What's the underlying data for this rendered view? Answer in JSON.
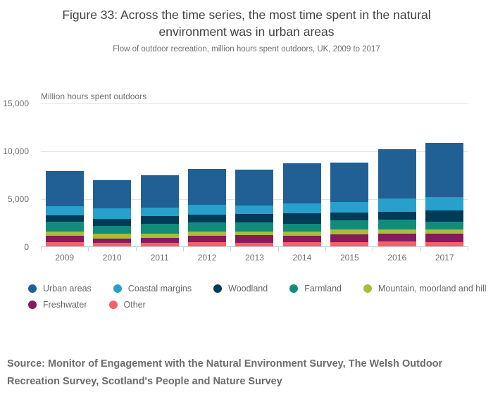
{
  "figure": {
    "title": "Figure 33: Across the time series, the most time spent in the natural environment was in urban areas",
    "subtitle": "Flow of outdoor recreation, million hours spent outdoors, UK, 2009 to 2017",
    "source": "Source: Monitor of Engagement with the Natural Environment Survey, The Welsh Outdoor Recreation Survey, Scotland's People and Nature Survey"
  },
  "chart_data": {
    "type": "bar",
    "stacked": true,
    "title": "Figure 33: Across the time series, the most time spent in the natural environment was in urban areas",
    "subtitle": "Flow of outdoor recreation, million hours spent outdoors, UK, 2009 to 2017",
    "unit_label": "Million hours spent outdoors",
    "xlabel": "",
    "ylabel": "Million hours spent outdoors",
    "ylim": [
      0,
      15000
    ],
    "grid": "horizontal",
    "legend_position": "bottom",
    "legend_row_split": 5,
    "axis_color": "#c9cfe0",
    "gridline_color": "#e2e2e2",
    "categories": [
      "2009",
      "2010",
      "2011",
      "2012",
      "2013",
      "2014",
      "2015",
      "2016",
      "2017"
    ],
    "y_ticks": [
      {
        "value": 15000,
        "label": "15,000"
      },
      {
        "value": 10000,
        "label": "10,000"
      },
      {
        "value": 5000,
        "label": "5,000"
      },
      {
        "value": 0,
        "label": "0"
      }
    ],
    "stack_order_bottom_to_top": [
      "Other",
      "Freshwater",
      "Mountain, moorland and hill",
      "Farmland",
      "Woodland",
      "Coastal margins",
      "Urban areas"
    ],
    "series": [
      {
        "name": "Urban areas",
        "color": "#206095",
        "values": [
          3650,
          2950,
          3350,
          3750,
          3750,
          4250,
          4150,
          5200,
          5650
        ]
      },
      {
        "name": "Coastal margins",
        "color": "#27a0cc",
        "values": [
          1000,
          1150,
          950,
          1050,
          900,
          1050,
          1100,
          1350,
          1450
        ]
      },
      {
        "name": "Woodland",
        "color": "#003c57",
        "values": [
          650,
          700,
          750,
          800,
          900,
          1050,
          800,
          850,
          1150
        ]
      },
      {
        "name": "Farmland",
        "color": "#118c7b",
        "values": [
          1050,
          800,
          1050,
          950,
          950,
          850,
          1000,
          1000,
          850
        ]
      },
      {
        "name": "Mountain, moorland and hill",
        "color": "#a8bd3a",
        "values": [
          450,
          500,
          450,
          450,
          400,
          450,
          500,
          450,
          450
        ]
      },
      {
        "name": "Freshwater",
        "color": "#871a5b",
        "values": [
          650,
          500,
          550,
          650,
          800,
          650,
          800,
          850,
          850
        ]
      },
      {
        "name": "Other",
        "color": "#f66068",
        "values": [
          450,
          350,
          350,
          450,
          350,
          450,
          450,
          500,
          450
        ]
      }
    ],
    "totals": [
      7900,
      6950,
      7450,
      8100,
      8050,
      8750,
      8800,
      10200,
      10850
    ]
  }
}
